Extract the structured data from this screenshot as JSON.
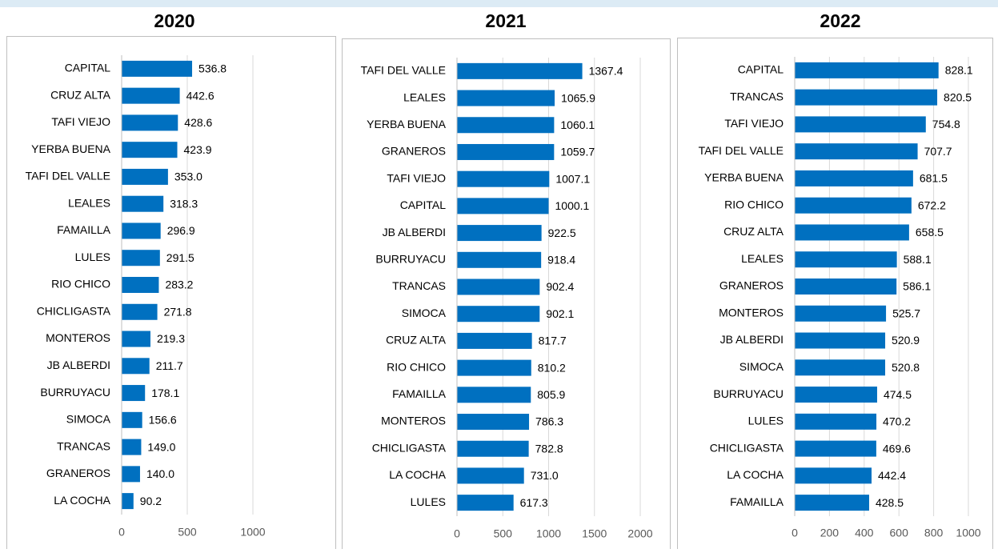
{
  "chart_data": [
    {
      "type": "bar",
      "orientation": "horizontal",
      "title": "2020",
      "color": "#0070c0",
      "grid": true,
      "categories": [
        "CAPITAL",
        "CRUZ ALTA",
        "TAFI VIEJO",
        "YERBA BUENA",
        "TAFI DEL VALLE",
        "LEALES",
        "FAMAILLA",
        "LULES",
        "RIO CHICO",
        "CHICLIGASTA",
        "MONTEROS",
        "JB ALBERDI",
        "BURRUYACU",
        "SIMOCA",
        "TRANCAS",
        "GRANEROS",
        "LA COCHA"
      ],
      "values": [
        536.8,
        442.6,
        428.6,
        423.9,
        353.0,
        318.3,
        296.9,
        291.5,
        283.2,
        271.8,
        219.3,
        211.7,
        178.1,
        156.6,
        149.0,
        140.0,
        90.2
      ],
      "value_labels": [
        "536.8",
        "442.6",
        "428.6",
        "423.9",
        "353.0",
        "318.3",
        "296.9",
        "291.5",
        "283.2",
        "271.8",
        "219.3",
        "211.7",
        "178.1",
        "156.6",
        "149.0",
        "140.0",
        "90.2"
      ],
      "xlim": [
        0,
        1000
      ],
      "xticks": [
        0,
        500,
        1000
      ]
    },
    {
      "type": "bar",
      "orientation": "horizontal",
      "title": "2021",
      "color": "#0070c0",
      "grid": true,
      "categories": [
        "TAFI DEL VALLE",
        "LEALES",
        "YERBA BUENA",
        "GRANEROS",
        "TAFI VIEJO",
        "CAPITAL",
        "JB ALBERDI",
        "BURRUYACU",
        "TRANCAS",
        "SIMOCA",
        "CRUZ ALTA",
        "RIO CHICO",
        "FAMAILLA",
        "MONTEROS",
        "CHICLIGASTA",
        "LA COCHA",
        "LULES"
      ],
      "values": [
        1367.4,
        1065.9,
        1060.1,
        1059.7,
        1007.1,
        1000.1,
        922.5,
        918.4,
        902.4,
        902.1,
        817.7,
        810.2,
        805.9,
        786.3,
        782.8,
        731.0,
        617.3
      ],
      "value_labels": [
        "1367.4",
        "1065.9",
        "1060.1",
        "1059.7",
        "1007.1",
        "1000.1",
        "922.5",
        "918.4",
        "902.4",
        "902.1",
        "817.7",
        "810.2",
        "805.9",
        "786.3",
        "782.8",
        "731.0",
        "617.3"
      ],
      "xlim": [
        0,
        2000
      ],
      "xticks": [
        0,
        500,
        1000,
        1500,
        2000
      ]
    },
    {
      "type": "bar",
      "orientation": "horizontal",
      "title": "2022",
      "color": "#0070c0",
      "grid": true,
      "categories": [
        "CAPITAL",
        "TRANCAS",
        "TAFI VIEJO",
        "TAFI DEL VALLE",
        "YERBA BUENA",
        "RIO CHICO",
        "CRUZ ALTA",
        "LEALES",
        "GRANEROS",
        "MONTEROS",
        "JB ALBERDI",
        "SIMOCA",
        "BURRUYACU",
        "LULES",
        "CHICLIGASTA",
        "LA COCHA",
        "FAMAILLA"
      ],
      "values": [
        828.1,
        820.5,
        754.8,
        707.7,
        681.5,
        672.2,
        658.5,
        588.1,
        586.1,
        525.7,
        520.9,
        520.8,
        474.5,
        470.2,
        469.6,
        442.4,
        428.5
      ],
      "value_labels": [
        "828.1",
        "820.5",
        "754.8",
        "707.7",
        "681.5",
        "672.2",
        "658.5",
        "588.1",
        "586.1",
        "525.7",
        "520.9",
        "520.8",
        "474.5",
        "470.2",
        "469.6",
        "442.4",
        "428.5"
      ],
      "xlim": [
        0,
        1000
      ],
      "xticks": [
        0,
        200,
        400,
        600,
        800,
        1000
      ]
    }
  ]
}
